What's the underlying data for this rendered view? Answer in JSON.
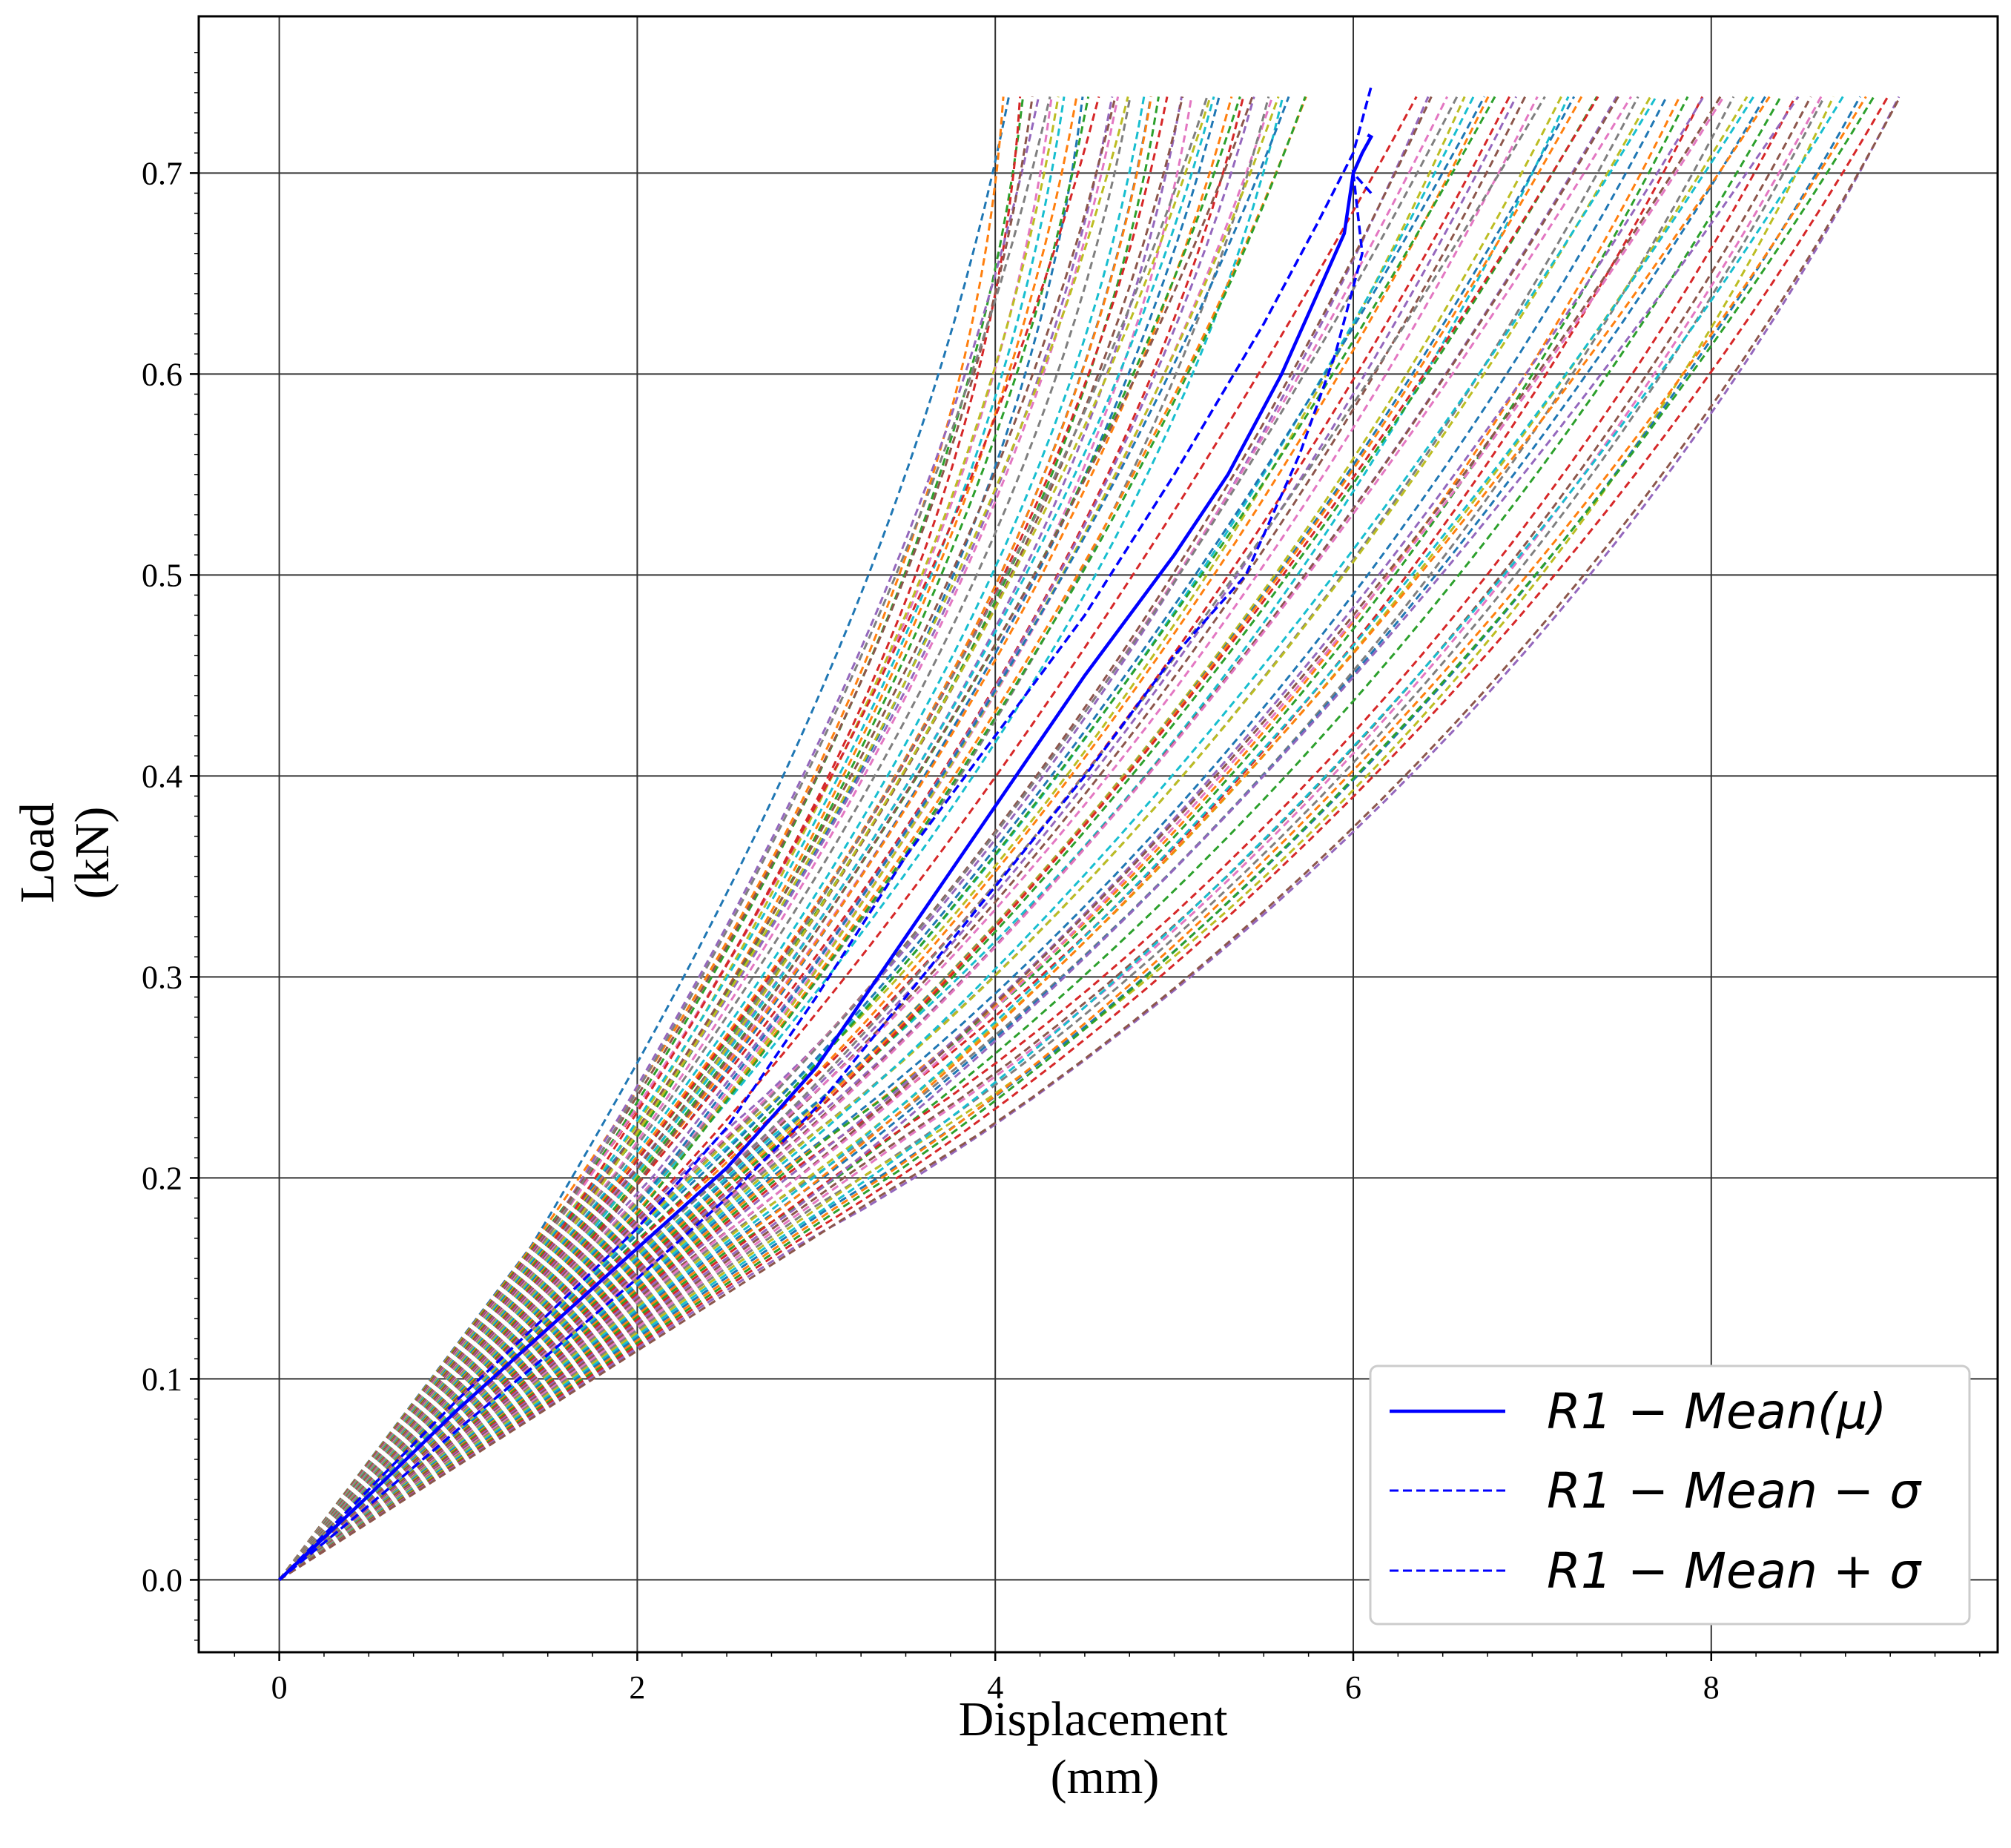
{
  "chart_data": {
    "type": "line",
    "title": "",
    "xlabel": [
      "Displacement",
      "(mm)"
    ],
    "ylabel": [
      "Load",
      "(kN)"
    ],
    "xlim": [
      -0.45,
      9.6
    ],
    "ylim": [
      -0.036,
      0.778
    ],
    "xticks": [
      0,
      2,
      4,
      6,
      8
    ],
    "xtick_labels": [
      "0",
      "2",
      "4",
      "6",
      "8"
    ],
    "yticks": [
      0.0,
      0.1,
      0.2,
      0.3,
      0.4,
      0.5,
      0.6,
      0.7
    ],
    "ytick_labels": [
      "0.0",
      "0.1",
      "0.2",
      "0.3",
      "0.4",
      "0.5",
      "0.6",
      "0.7"
    ],
    "grid": true,
    "legend_position": "lower-right",
    "legend": [
      {
        "label": "R1 − Mean(μ)",
        "color": "#0000ff",
        "style": "solid"
      },
      {
        "label": "R1 − Mean − σ",
        "color": "#0000ff",
        "style": "dashed"
      },
      {
        "label": "R1 − Mean + σ",
        "color": "#0000ff",
        "style": "dashed"
      }
    ],
    "sample_curves": {
      "count": 96,
      "style": "dashed",
      "palette": [
        "#1f77b4",
        "#ff7f0e",
        "#2ca02c",
        "#d62728",
        "#9467bd",
        "#8c564b",
        "#e377c2",
        "#7f7f7f",
        "#bcbd22",
        "#17becf"
      ],
      "initial_slope_range_kN_per_mm": [
        0.057,
        0.118
      ],
      "max_load_kN": 0.738,
      "final_displacement_range_mm": [
        4.0,
        9.05
      ]
    },
    "series": [
      {
        "name": "R1 − Mean(μ)",
        "color": "#0000ff",
        "style": "solid",
        "x": [
          0,
          0.5,
          1.0,
          1.5,
          2.0,
          2.5,
          3.0,
          3.5,
          4.0,
          4.5,
          5.0,
          5.3,
          5.6,
          5.8,
          5.95,
          6.0,
          6.05,
          6.1,
          6.08
        ],
        "y": [
          0,
          0.042,
          0.085,
          0.125,
          0.165,
          0.205,
          0.255,
          0.32,
          0.385,
          0.45,
          0.51,
          0.55,
          0.6,
          0.64,
          0.67,
          0.7,
          0.71,
          0.718,
          0.719
        ]
      },
      {
        "name": "R1 − Mean − σ",
        "color": "#0000ff",
        "style": "dashed",
        "x": [
          0,
          0.5,
          1.0,
          1.5,
          2.0,
          2.5,
          3.0,
          3.5,
          4.0,
          4.5,
          5.0,
          5.5,
          5.8,
          6.0,
          6.1
        ],
        "y": [
          0,
          0.045,
          0.09,
          0.132,
          0.175,
          0.225,
          0.29,
          0.36,
          0.42,
          0.48,
          0.55,
          0.625,
          0.675,
          0.71,
          0.743
        ]
      },
      {
        "name": "R1 − Mean + σ",
        "color": "#0000ff",
        "style": "dashed",
        "x": [
          0,
          0.5,
          1.0,
          1.5,
          2.0,
          2.5,
          3.0,
          3.5,
          4.0,
          4.5,
          5.0,
          5.4,
          5.7,
          5.9,
          6.05,
          6.0,
          6.1
        ],
        "y": [
          0,
          0.037,
          0.075,
          0.112,
          0.15,
          0.19,
          0.235,
          0.29,
          0.345,
          0.4,
          0.46,
          0.5,
          0.56,
          0.61,
          0.66,
          0.7,
          0.69
        ]
      }
    ]
  }
}
